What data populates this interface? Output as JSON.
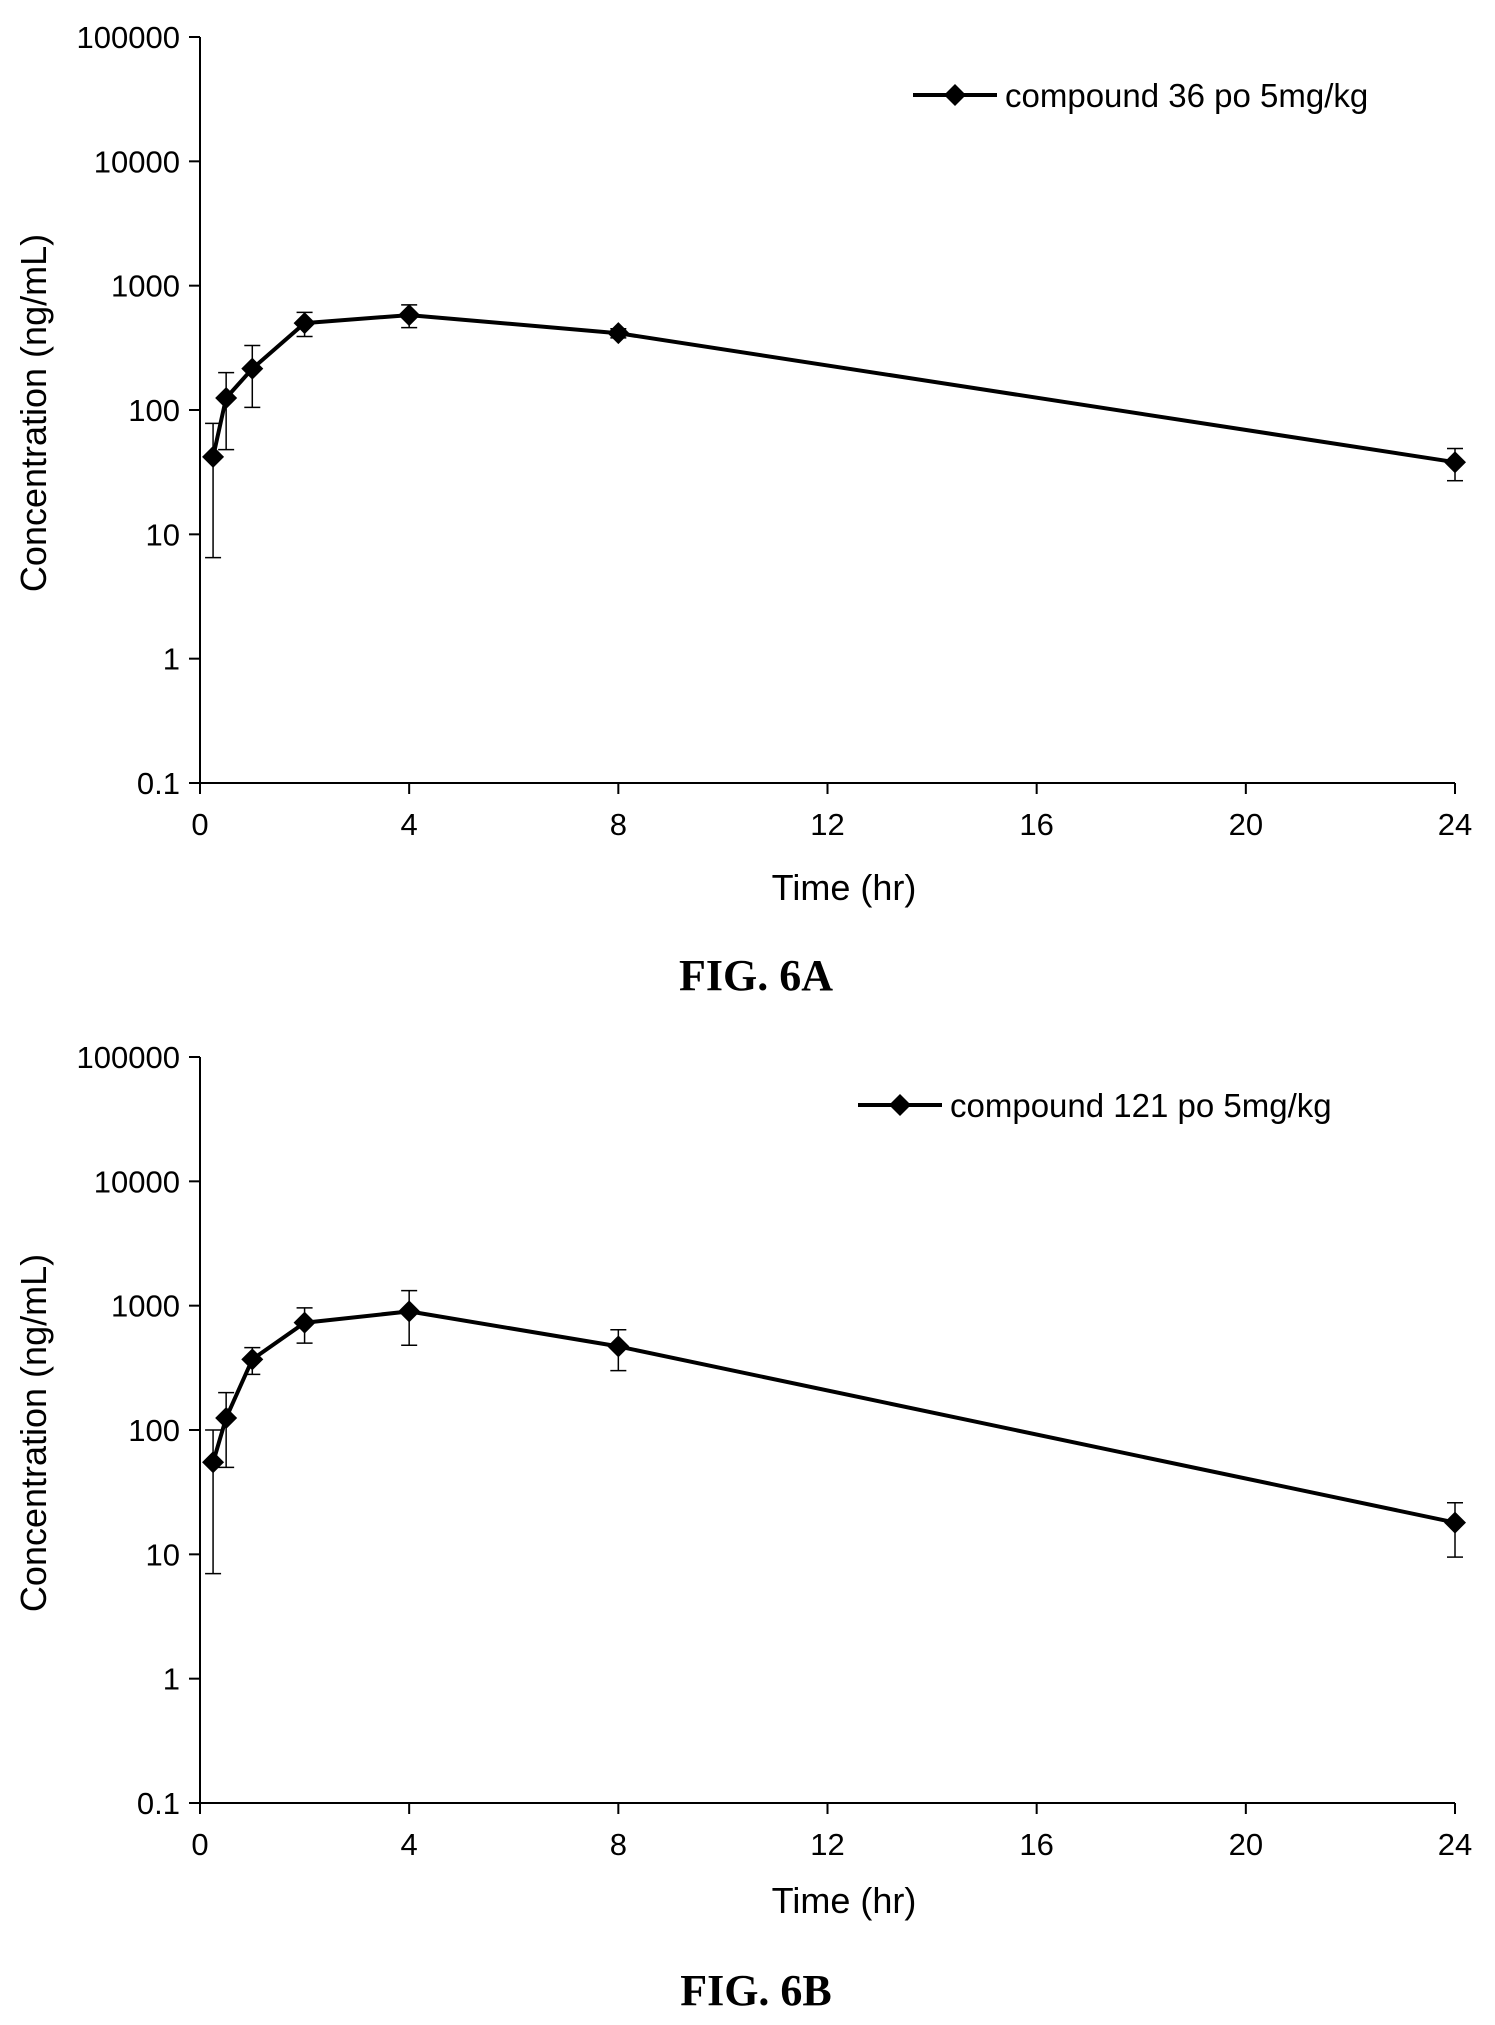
{
  "chart_data": [
    {
      "type": "line",
      "caption": "FIG. 6A",
      "xlabel": "Time (hr)",
      "ylabel": "Concentration (ng/mL)",
      "yscale": "log",
      "xlim": [
        0,
        24
      ],
      "ylim": [
        0.1,
        100000
      ],
      "x_ticks": [
        "0",
        "4",
        "8",
        "12",
        "16",
        "20",
        "24"
      ],
      "y_ticks": [
        "0.1",
        "1",
        "10",
        "100",
        "1000",
        "10000",
        "100000"
      ],
      "grid": false,
      "legend_position": "top-right",
      "series": [
        {
          "name": "compound 36 po 5mg/kg",
          "x": [
            0.25,
            0.5,
            1,
            2,
            4,
            8,
            24
          ],
          "y": [
            42,
            125,
            215,
            500,
            580,
            415,
            38
          ],
          "err_low": [
            6.5,
            48,
            105,
            390,
            460,
            380,
            27
          ],
          "err_high": [
            78,
            200,
            330,
            610,
            700,
            450,
            49
          ]
        }
      ]
    },
    {
      "type": "line",
      "caption": "FIG. 6B",
      "xlabel": "Time (hr)",
      "ylabel": "Concentration (ng/mL)",
      "yscale": "log",
      "xlim": [
        0,
        24
      ],
      "ylim": [
        0.1,
        100000
      ],
      "x_ticks": [
        "0",
        "4",
        "8",
        "12",
        "16",
        "20",
        "24"
      ],
      "y_ticks": [
        "0.1",
        "1",
        "10",
        "100",
        "1000",
        "10000",
        "100000"
      ],
      "grid": false,
      "legend_position": "top-right",
      "series": [
        {
          "name": "compound 121 po 5mg/kg",
          "x": [
            0.25,
            0.5,
            1,
            2,
            4,
            8,
            24
          ],
          "y": [
            55,
            125,
            370,
            730,
            900,
            470,
            18
          ],
          "err_low": [
            7,
            50,
            280,
            500,
            480,
            300,
            9.5
          ],
          "err_high": [
            100,
            200,
            460,
            960,
            1320,
            640,
            26
          ]
        }
      ]
    }
  ]
}
